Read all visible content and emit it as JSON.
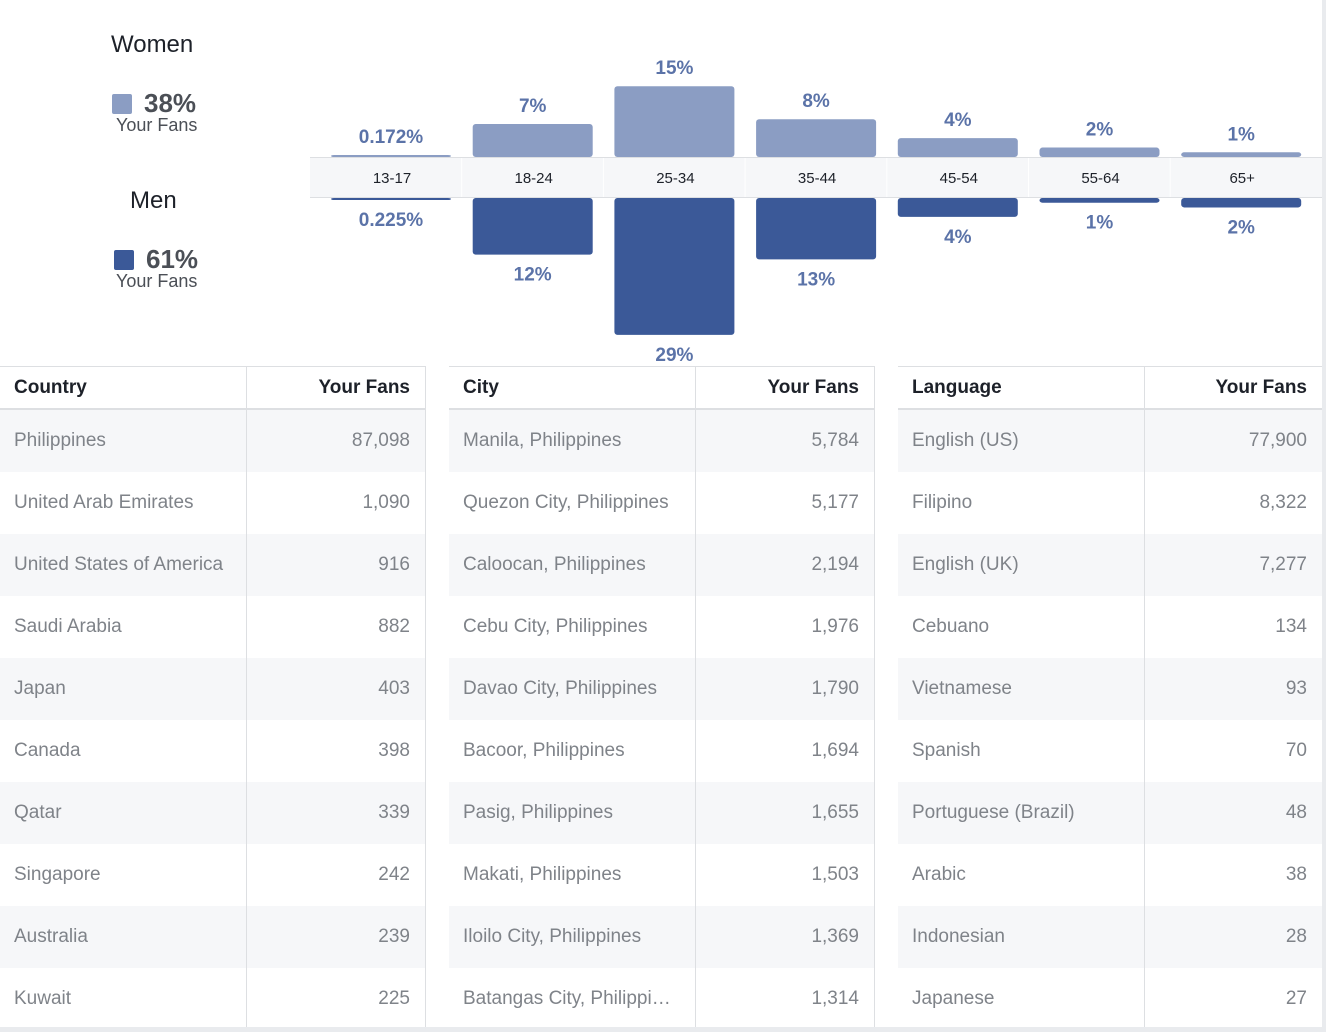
{
  "legend": {
    "women": {
      "label": "Women",
      "percent": "38%",
      "sub": "Your Fans",
      "color": "#8b9dc3"
    },
    "men": {
      "label": "Men",
      "percent": "61%",
      "sub": "Your Fans",
      "color": "#3b5998"
    }
  },
  "chart_data": {
    "type": "bar",
    "categories": [
      "13-17",
      "18-24",
      "25-34",
      "35-44",
      "45-54",
      "55-64",
      "65+"
    ],
    "series": [
      {
        "name": "Women",
        "values": [
          0.172,
          7,
          15,
          8,
          4,
          2,
          1
        ],
        "labels": [
          "0.172%",
          "7%",
          "15%",
          "8%",
          "4%",
          "2%",
          "1%"
        ],
        "color": "#8b9dc3"
      },
      {
        "name": "Men",
        "values": [
          0.225,
          12,
          29,
          13,
          4,
          1,
          2
        ],
        "labels": [
          "0.225%",
          "12%",
          "29%",
          "13%",
          "4%",
          "1%",
          "2%"
        ],
        "color": "#3b5998"
      }
    ],
    "label_color": "#5b73a8"
  },
  "tables": [
    {
      "header": {
        "name": "Country",
        "value": "Your Fans"
      },
      "rows": [
        {
          "name": "Philippines",
          "value": "87,098"
        },
        {
          "name": "United Arab Emirates",
          "value": "1,090"
        },
        {
          "name": "United States of America",
          "value": "916"
        },
        {
          "name": "Saudi Arabia",
          "value": "882"
        },
        {
          "name": "Japan",
          "value": "403"
        },
        {
          "name": "Canada",
          "value": "398"
        },
        {
          "name": "Qatar",
          "value": "339"
        },
        {
          "name": "Singapore",
          "value": "242"
        },
        {
          "name": "Australia",
          "value": "239"
        },
        {
          "name": "Kuwait",
          "value": "225"
        }
      ]
    },
    {
      "header": {
        "name": "City",
        "value": "Your Fans"
      },
      "rows": [
        {
          "name": "Manila, Philippines",
          "value": "5,784"
        },
        {
          "name": "Quezon City, Philippines",
          "value": "5,177"
        },
        {
          "name": "Caloocan, Philippines",
          "value": "2,194"
        },
        {
          "name": "Cebu City, Philippines",
          "value": "1,976"
        },
        {
          "name": "Davao City, Philippines",
          "value": "1,790"
        },
        {
          "name": "Bacoor, Philippines",
          "value": "1,694"
        },
        {
          "name": "Pasig, Philippines",
          "value": "1,655"
        },
        {
          "name": "Makati, Philippines",
          "value": "1,503"
        },
        {
          "name": "Iloilo City, Philippines",
          "value": "1,369"
        },
        {
          "name": "Batangas City, Philippi…",
          "value": "1,314"
        }
      ]
    },
    {
      "header": {
        "name": "Language",
        "value": "Your Fans"
      },
      "rows": [
        {
          "name": "English (US)",
          "value": "77,900"
        },
        {
          "name": "Filipino",
          "value": "8,322"
        },
        {
          "name": "English (UK)",
          "value": "7,277"
        },
        {
          "name": "Cebuano",
          "value": "134"
        },
        {
          "name": "Vietnamese",
          "value": "93"
        },
        {
          "name": "Spanish",
          "value": "70"
        },
        {
          "name": "Portuguese (Brazil)",
          "value": "48"
        },
        {
          "name": "Arabic",
          "value": "38"
        },
        {
          "name": "Indonesian",
          "value": "28"
        },
        {
          "name": "Japanese",
          "value": "27"
        }
      ]
    }
  ]
}
